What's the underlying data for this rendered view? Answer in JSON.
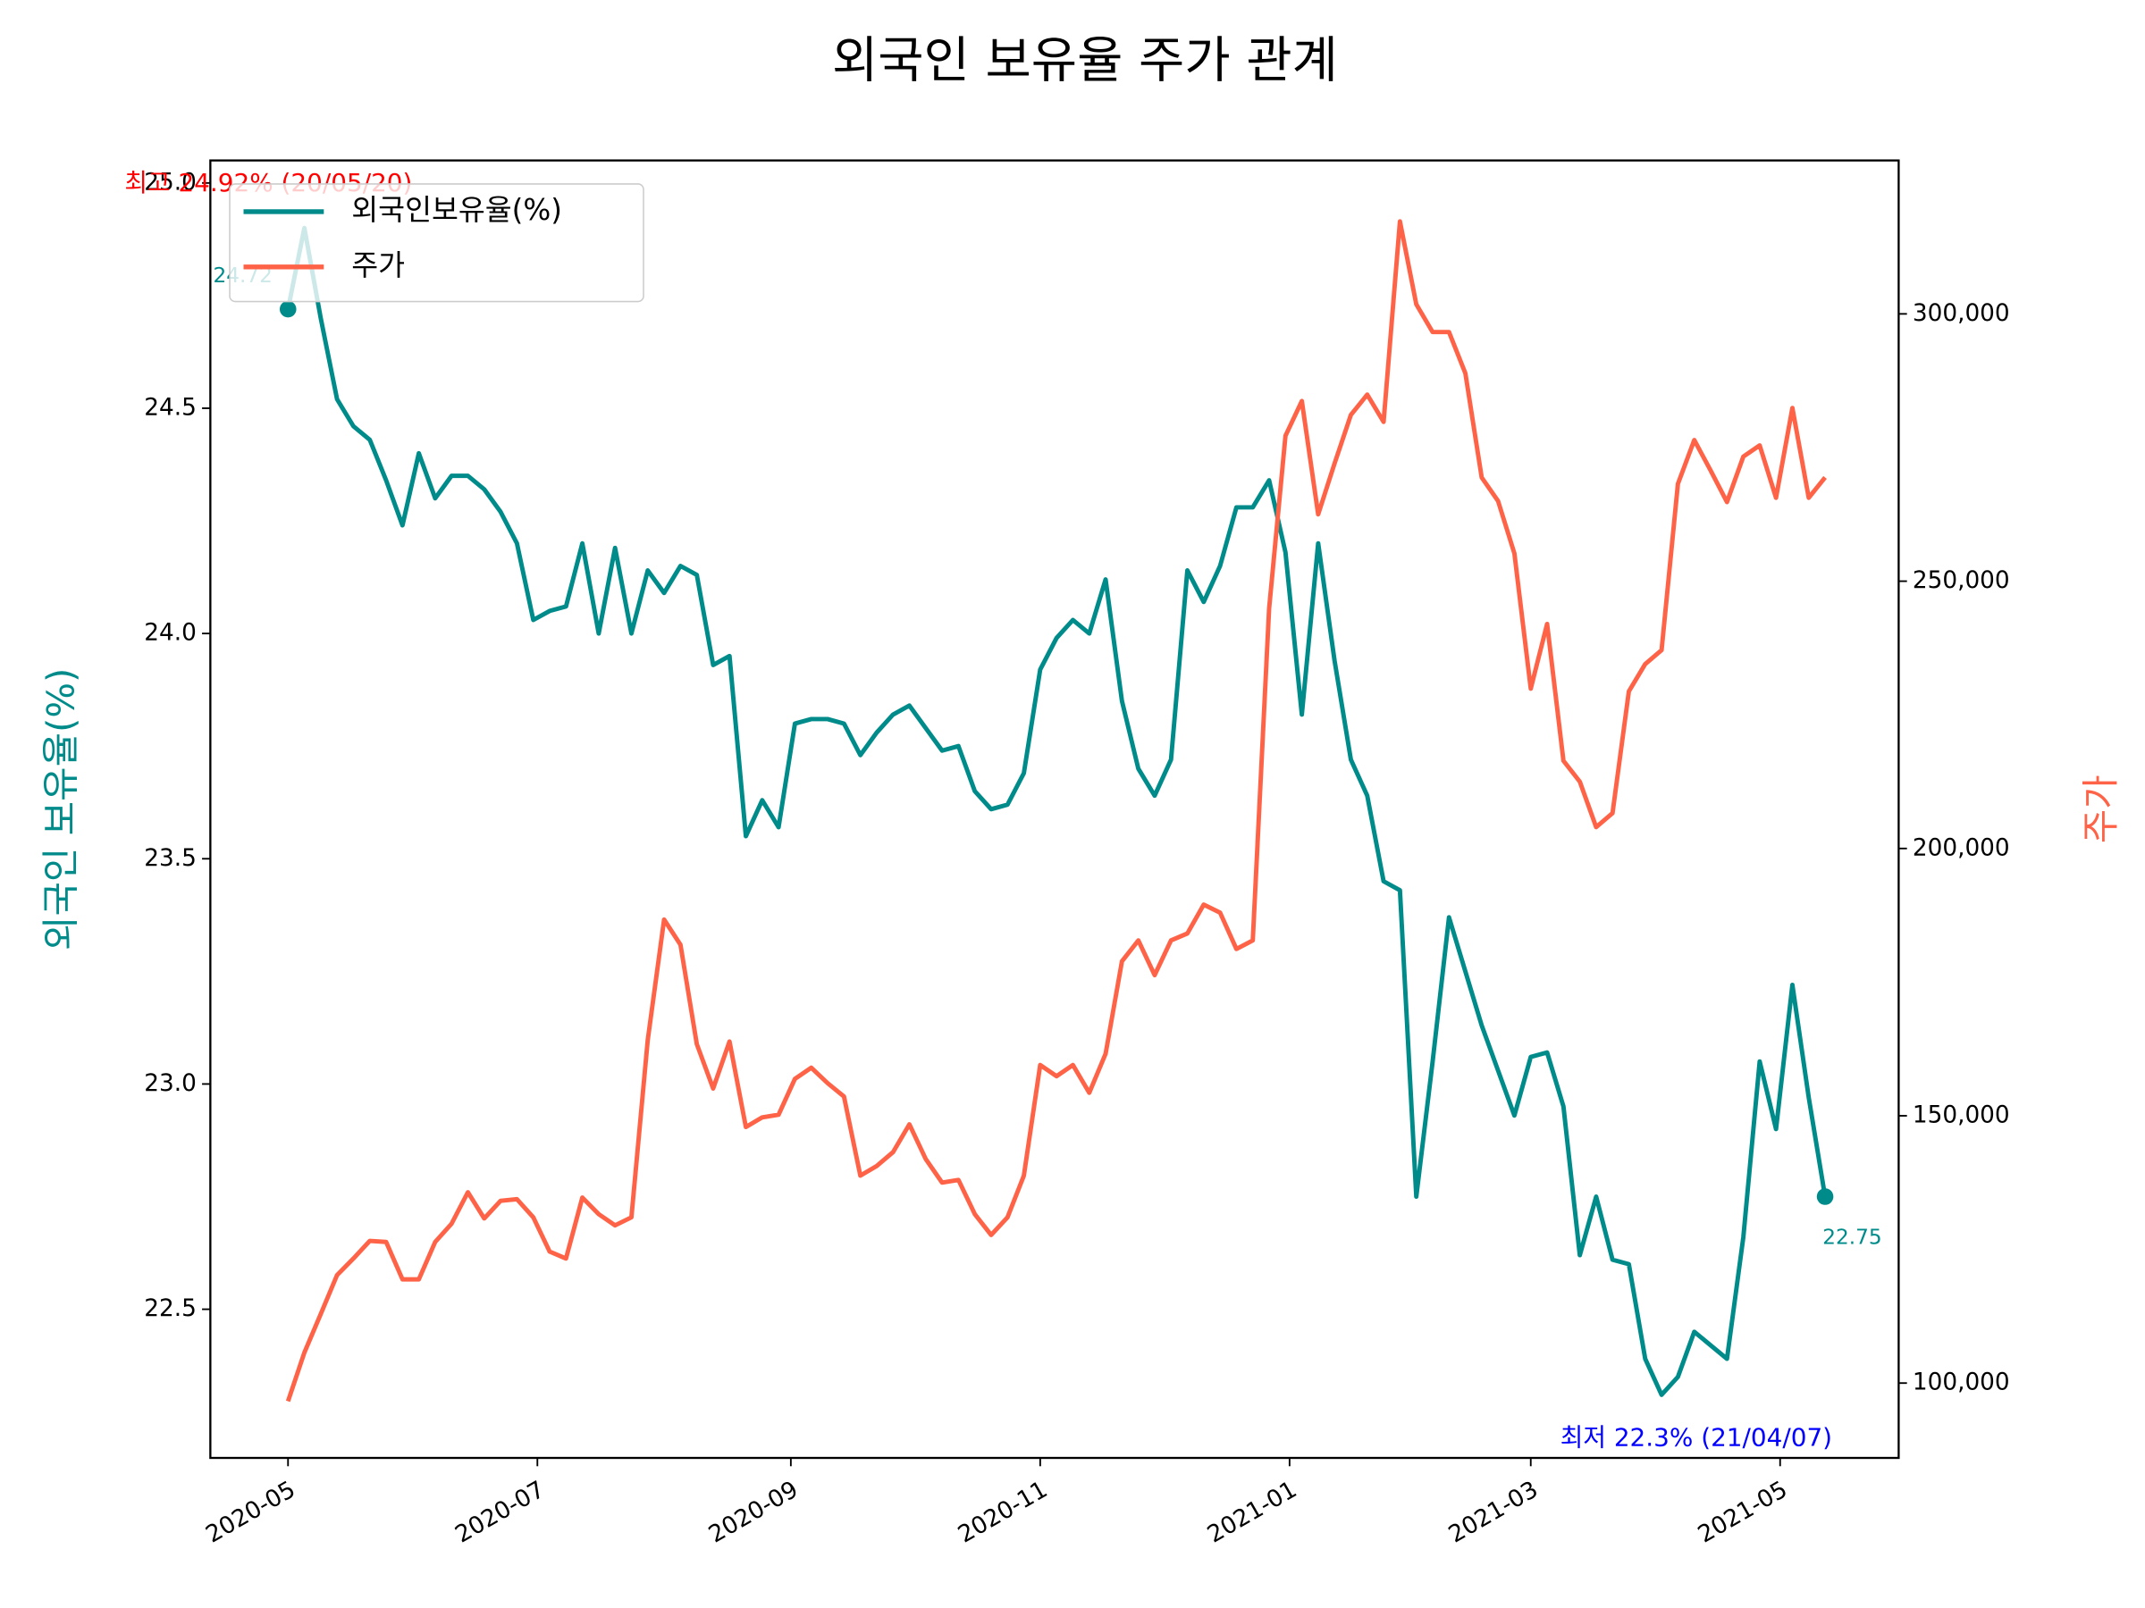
{
  "chart_data": {
    "type": "line",
    "title": "외국인 보유율 주가 관계",
    "ylabel": "외국인 보유율(%)",
    "y2label": "주가",
    "x": [
      "2020-05-01",
      "2020-05-05",
      "2020-05-09",
      "2020-05-13",
      "2020-05-17",
      "2020-05-21",
      "2020-05-25",
      "2020-05-29",
      "2020-06-02",
      "2020-06-06",
      "2020-06-10",
      "2020-06-14",
      "2020-06-18",
      "2020-06-22",
      "2020-06-26",
      "2020-06-30",
      "2020-07-04",
      "2020-07-08",
      "2020-07-12",
      "2020-07-16",
      "2020-07-20",
      "2020-07-24",
      "2020-07-28",
      "2020-08-01",
      "2020-08-05",
      "2020-08-09",
      "2020-08-13",
      "2020-08-17",
      "2020-08-21",
      "2020-08-25",
      "2020-08-29",
      "2020-09-02",
      "2020-09-06",
      "2020-09-10",
      "2020-09-14",
      "2020-09-18",
      "2020-09-22",
      "2020-09-26",
      "2020-09-30",
      "2020-10-04",
      "2020-10-08",
      "2020-10-12",
      "2020-10-16",
      "2020-10-20",
      "2020-10-24",
      "2020-10-28",
      "2020-11-01",
      "2020-11-05",
      "2020-11-09",
      "2020-11-13",
      "2020-11-17",
      "2020-11-21",
      "2020-11-25",
      "2020-11-29",
      "2020-12-03",
      "2020-12-07",
      "2020-12-11",
      "2020-12-15",
      "2020-12-19",
      "2020-12-23",
      "2020-12-27",
      "2020-12-31",
      "2021-01-04",
      "2021-01-08",
      "2021-01-12",
      "2021-01-16",
      "2021-01-20",
      "2021-01-24",
      "2021-01-28",
      "2021-02-01",
      "2021-02-05",
      "2021-02-09",
      "2021-02-13",
      "2021-02-17",
      "2021-02-21",
      "2021-02-25",
      "2021-03-01",
      "2021-03-05",
      "2021-03-09",
      "2021-03-13",
      "2021-03-17",
      "2021-03-21",
      "2021-03-25",
      "2021-03-29",
      "2021-04-02",
      "2021-04-06",
      "2021-04-10",
      "2021-04-14",
      "2021-04-18",
      "2021-04-22",
      "2021-04-26",
      "2021-04-30",
      "2021-05-04",
      "2021-05-08",
      "2021-05-12"
    ],
    "series": [
      {
        "name": "외국인보유율(%)",
        "color": "#008b8b",
        "values": [
          24.72,
          24.9,
          24.7,
          24.52,
          24.46,
          24.43,
          24.34,
          24.24,
          24.4,
          24.3,
          24.35,
          24.35,
          24.32,
          24.27,
          24.2,
          24.03,
          24.05,
          24.06,
          24.2,
          24.0,
          24.19,
          24.0,
          24.14,
          24.09,
          24.15,
          24.13,
          23.93,
          23.95,
          23.55,
          23.63,
          23.57,
          23.8,
          23.81,
          23.81,
          23.8,
          23.73,
          23.78,
          23.82,
          23.84,
          23.79,
          23.74,
          23.75,
          23.65,
          23.61,
          23.62,
          23.69,
          23.92,
          23.99,
          24.03,
          24.0,
          24.12,
          23.85,
          23.7,
          23.64,
          23.72,
          24.14,
          24.07,
          24.15,
          24.28,
          24.28,
          24.34,
          24.18,
          23.82,
          24.2,
          23.94,
          23.72,
          23.64,
          23.45,
          23.43,
          22.75,
          23.05,
          23.37,
          23.25,
          23.13,
          23.03,
          22.93,
          23.06,
          23.07,
          22.95,
          22.62,
          22.75,
          22.61,
          22.6,
          22.39,
          22.31,
          22.35,
          22.45,
          22.42,
          22.39,
          22.66,
          23.05,
          22.9,
          23.22,
          22.97,
          22.75
        ]
      },
      {
        "name": "주가",
        "color": "#ff6347",
        "axis": "y2",
        "values": [
          96600,
          105700,
          112900,
          120200,
          123300,
          126600,
          126400,
          119400,
          119400,
          126400,
          129800,
          135700,
          130800,
          134100,
          134400,
          131000,
          124600,
          123300,
          134700,
          131600,
          129500,
          131000,
          164200,
          186700,
          182000,
          163400,
          155100,
          163900,
          147900,
          149700,
          150200,
          156900,
          159000,
          156100,
          153600,
          138800,
          140600,
          143200,
          148400,
          141900,
          137500,
          138000,
          131600,
          127700,
          131000,
          138800,
          159500,
          157400,
          159500,
          154300,
          161600,
          178900,
          182800,
          176300,
          182800,
          184100,
          189500,
          188000,
          181200,
          182800,
          244900,
          277200,
          283700,
          262500,
          272000,
          281100,
          284900,
          279800,
          317300,
          301800,
          296600,
          296600,
          288900,
          269400,
          265000,
          255200,
          229900,
          242000,
          216400,
          212500,
          204000,
          206600,
          229400,
          234500,
          237100,
          268200,
          276400,
          270700,
          264800,
          273300,
          275400,
          265600,
          282400,
          265600,
          269400
        ]
      }
    ],
    "xlim": [
      "2020-04-12",
      "2021-05-30"
    ],
    "xticks": [
      {
        "value": "2020-05-01",
        "label": "2020-05"
      },
      {
        "value": "2020-07-01",
        "label": "2020-07"
      },
      {
        "value": "2020-09-01",
        "label": "2020-09"
      },
      {
        "value": "2020-11-01",
        "label": "2020-11"
      },
      {
        "value": "2021-01-01",
        "label": "2021-01"
      },
      {
        "value": "2021-03-01",
        "label": "2021-03"
      },
      {
        "value": "2021-05-01",
        "label": "2021-05"
      }
    ],
    "ylim": [
      22.17,
      25.05
    ],
    "yticks": [
      22.5,
      {
        "value": 23,
        "label": "23.0"
      },
      23.5,
      {
        "value": 24,
        "label": "24.0"
      },
      24.5,
      {
        "value": 25,
        "label": "25.0"
      }
    ],
    "y2lim": [
      86000,
      328700
    ],
    "y2ticks": [
      {
        "value": 100000,
        "label": "100,000"
      },
      {
        "value": 150000,
        "label": "150,000"
      },
      {
        "value": 200000,
        "label": "200,000"
      },
      {
        "value": 250000,
        "label": "250,000"
      },
      {
        "value": 300000,
        "label": "300,000"
      }
    ],
    "legend": "upper left",
    "annotations": [
      {
        "text": "최고 24.92% (20/05/20)",
        "color": "#ff0000"
      },
      {
        "text": "24.72",
        "color": "#008b8b"
      },
      {
        "text": "22.75",
        "color": "#008b8b"
      },
      {
        "text": "최저 22.3% (21/04/07)",
        "color": "#0000ff"
      }
    ]
  }
}
